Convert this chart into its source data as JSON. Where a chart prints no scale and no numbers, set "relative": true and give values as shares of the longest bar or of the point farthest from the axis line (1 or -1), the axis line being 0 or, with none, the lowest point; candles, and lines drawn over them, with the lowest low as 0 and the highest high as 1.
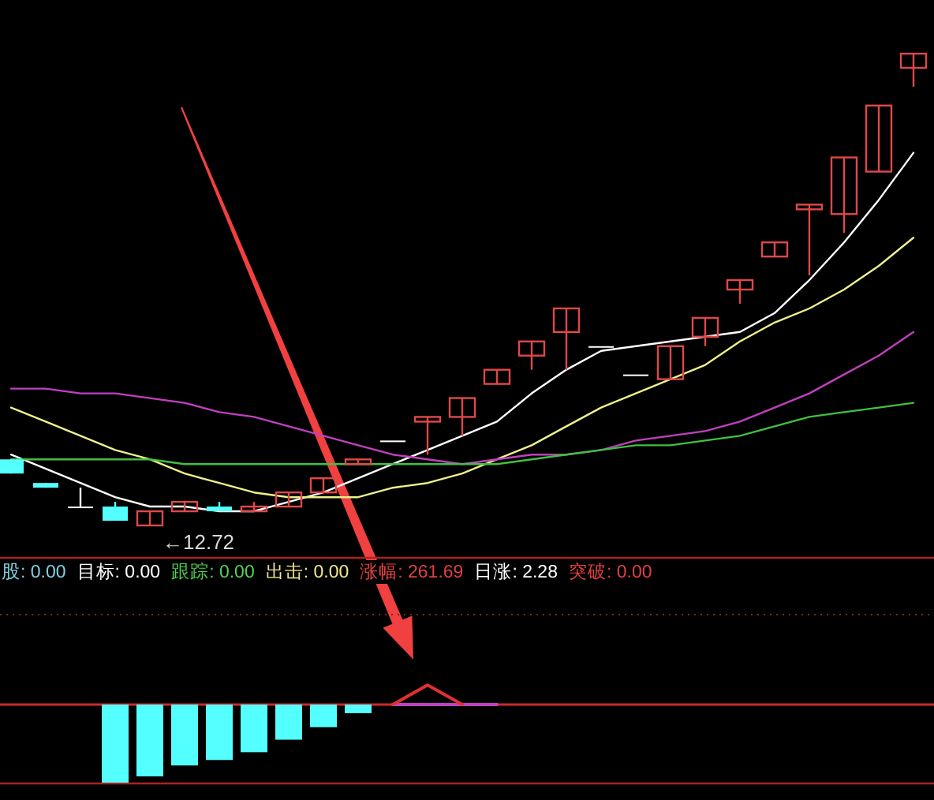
{
  "chart_data": [
    {
      "type": "candlestick",
      "relative": true,
      "categories": [
        null,
        null,
        null,
        null,
        null,
        null,
        null,
        null,
        null,
        null,
        null,
        null,
        null,
        null,
        null,
        null,
        null,
        null,
        null,
        null,
        null,
        null,
        null,
        null,
        null,
        null,
        null
      ],
      "ohlc": [
        [
          0.14,
          0.14,
          0.11,
          0.11
        ],
        [
          0.09,
          0.09,
          0.08,
          0.08
        ],
        [
          0.04,
          0.08,
          0.04,
          0.04
        ],
        [
          0.04,
          0.05,
          0.01,
          0.01
        ],
        [
          0.0,
          0.03,
          0.0,
          0.03
        ],
        [
          0.03,
          0.05,
          0.03,
          0.05
        ],
        [
          0.04,
          0.05,
          0.03,
          0.03
        ],
        [
          0.03,
          0.05,
          0.03,
          0.04
        ],
        [
          0.04,
          0.07,
          0.04,
          0.07
        ],
        [
          0.07,
          0.1,
          0.07,
          0.1
        ],
        [
          0.13,
          0.14,
          0.13,
          0.14
        ],
        [
          0.18,
          0.18,
          0.18,
          0.18
        ],
        [
          0.22,
          0.23,
          0.15,
          0.23
        ],
        [
          0.23,
          0.27,
          0.19,
          0.27
        ],
        [
          0.3,
          0.33,
          0.3,
          0.33
        ],
        [
          0.36,
          0.39,
          0.33,
          0.39
        ],
        [
          0.41,
          0.46,
          0.33,
          0.46
        ],
        [
          0.38,
          0.38,
          0.38,
          0.38
        ],
        [
          0.32,
          0.32,
          0.32,
          0.32
        ],
        [
          0.31,
          0.38,
          0.31,
          0.38
        ],
        [
          0.4,
          0.44,
          0.38,
          0.44
        ],
        [
          0.5,
          0.52,
          0.47,
          0.52
        ],
        [
          0.57,
          0.6,
          0.57,
          0.6
        ],
        [
          0.67,
          0.68,
          0.53,
          0.68
        ],
        [
          0.66,
          0.78,
          0.62,
          0.78
        ],
        [
          0.75,
          0.89,
          0.75,
          0.89
        ],
        [
          0.97,
          1.0,
          0.93,
          1.0
        ]
      ],
      "series": [
        {
          "type": "line",
          "color": "#ffffff",
          "values": [
            0.15,
            0.12,
            0.09,
            0.06,
            0.04,
            0.04,
            0.03,
            0.03,
            0.05,
            0.07,
            0.1,
            0.13,
            0.16,
            0.19,
            0.22,
            0.28,
            0.33,
            0.37,
            0.38,
            0.39,
            0.4,
            0.41,
            0.45,
            0.52,
            0.6,
            0.69,
            0.79
          ]
        },
        {
          "type": "line",
          "color": "#f0f08c",
          "values": [
            0.25,
            0.22,
            0.19,
            0.16,
            0.14,
            0.11,
            0.09,
            0.07,
            0.06,
            0.06,
            0.06,
            0.08,
            0.09,
            0.11,
            0.14,
            0.17,
            0.21,
            0.25,
            0.28,
            0.31,
            0.34,
            0.39,
            0.43,
            0.46,
            0.5,
            0.55,
            0.61
          ]
        },
        {
          "type": "line",
          "color": "#c040c0",
          "values": [
            0.29,
            0.29,
            0.28,
            0.28,
            0.27,
            0.26,
            0.24,
            0.23,
            0.21,
            0.19,
            0.17,
            0.15,
            0.14,
            0.13,
            0.14,
            0.15,
            0.15,
            0.16,
            0.18,
            0.19,
            0.2,
            0.22,
            0.25,
            0.28,
            0.32,
            0.36,
            0.41
          ]
        },
        {
          "type": "line",
          "color": "#40c040",
          "values": [
            0.14,
            0.14,
            0.14,
            0.14,
            0.14,
            0.13,
            0.13,
            0.13,
            0.13,
            0.13,
            0.13,
            0.13,
            0.13,
            0.13,
            0.13,
            0.14,
            0.15,
            0.16,
            0.17,
            0.17,
            0.18,
            0.19,
            0.21,
            0.23,
            0.24,
            0.25,
            0.26
          ]
        }
      ],
      "annotations": [
        "←12.72"
      ]
    },
    {
      "type": "bar",
      "relative": true,
      "categories": [
        null,
        null,
        null,
        null,
        null,
        null,
        null,
        null,
        null,
        null,
        null,
        null,
        null,
        null,
        null,
        null,
        null,
        null,
        null,
        null,
        null,
        null,
        null,
        null,
        null,
        null,
        null
      ],
      "series": [
        {
          "color": "#54ffff",
          "values": [
            null,
            null,
            null,
            -1,
            -0.92,
            -0.78,
            -0.71,
            -0.61,
            -0.45,
            -0.29,
            -0.11,
            null,
            null,
            null,
            null,
            null,
            null,
            null,
            null,
            null,
            null,
            null,
            null,
            null,
            null,
            null,
            null
          ]
        },
        {
          "type": "line",
          "color": "#c040c0",
          "values": [
            null,
            null,
            null,
            null,
            null,
            null,
            null,
            null,
            null,
            null,
            null,
            0,
            0,
            0,
            0,
            null,
            null,
            null,
            null,
            null,
            null,
            null,
            null,
            null,
            null,
            null,
            null
          ]
        },
        {
          "type": "line",
          "color": "#e03030",
          "values": [
            null,
            null,
            null,
            null,
            null,
            null,
            null,
            null,
            null,
            null,
            null,
            0,
            0.25,
            0,
            null,
            null,
            null,
            null,
            null,
            null,
            null,
            null,
            null,
            null,
            null,
            null,
            null
          ]
        }
      ],
      "ref_lines": [
        {
          "axis": "y",
          "value": 0,
          "color": "#d02828"
        }
      ],
      "annotations": [
        "股: 0.00",
        "目标: 0.00",
        "跟踪: 0.00",
        "出击: 0.00",
        "涨幅: 261.69",
        "日涨: 2.28",
        "突破: 0.00"
      ]
    }
  ]
}
